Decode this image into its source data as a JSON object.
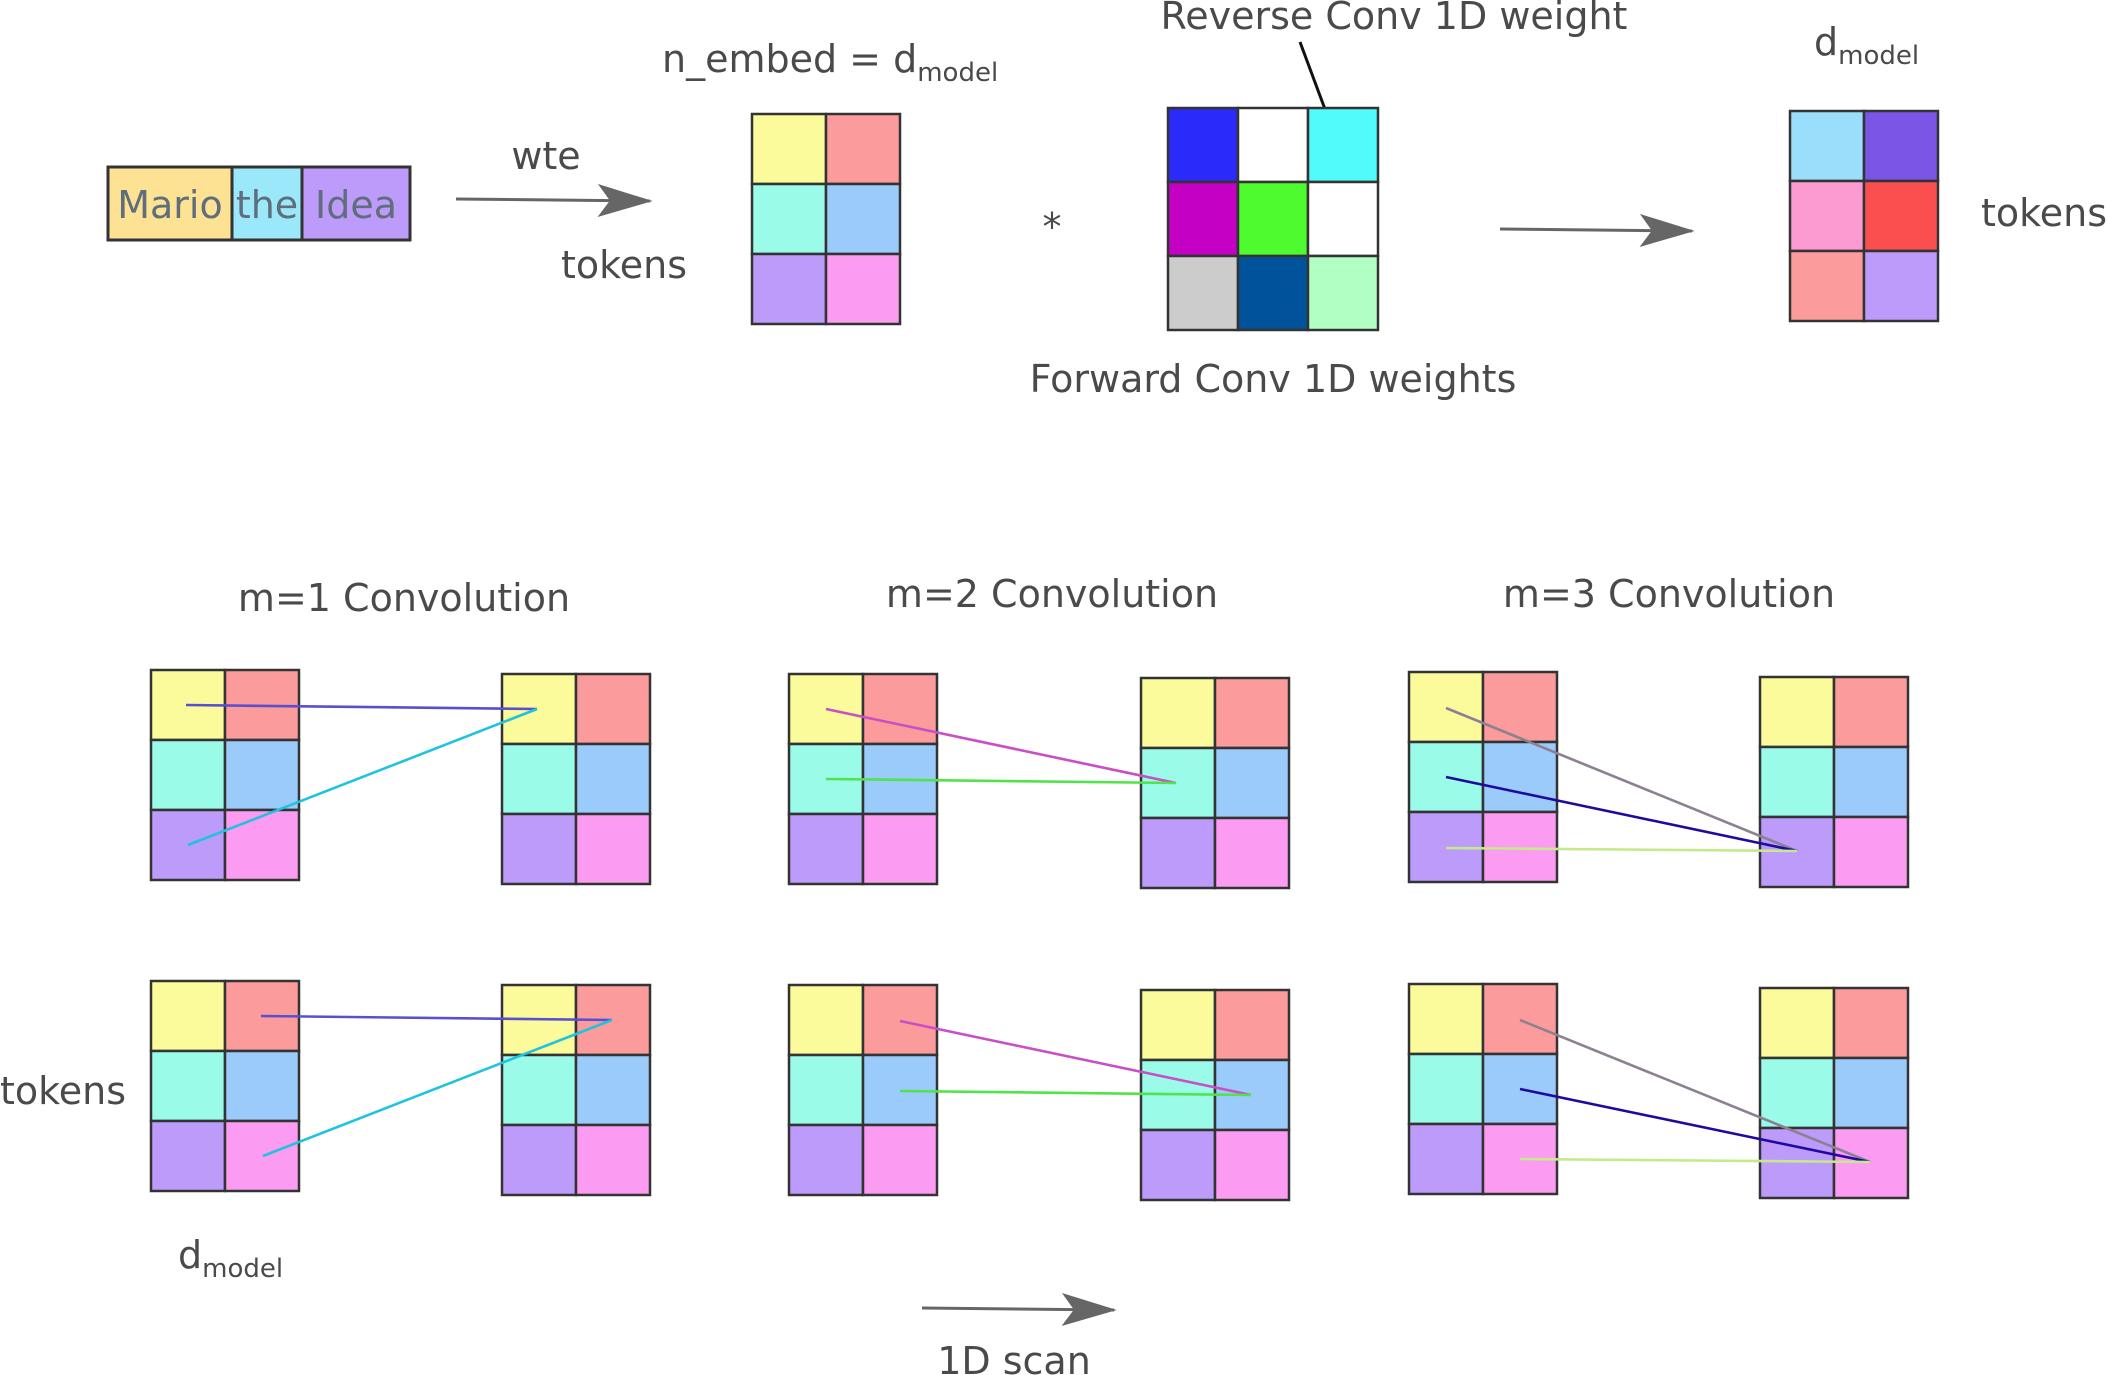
{
  "colors": {
    "yellow": "#fbfb9b",
    "salmon": "#fb9b9b",
    "aqua": "#9bfbe9",
    "skyblue": "#9bcbfb",
    "lavender": "#bd9bfb",
    "pink": "#fb9bf2",
    "arrow": "#666666",
    "line_purple": "#5a4fcf",
    "line_cyan": "#1fc3de",
    "line_magenta": "#c94fc5",
    "line_green": "#52e34a",
    "line_gray": "#8c8092",
    "line_navy": "#1f0aa0",
    "line_lime": "#c4ea8a"
  },
  "top": {
    "token_strip": {
      "tokens": [
        "Mario",
        "the",
        "Idea"
      ],
      "colors": [
        "#fde294",
        "#9be8fb",
        "#bd9bfb"
      ]
    },
    "wte_label": "wte",
    "tokens_label": "tokens",
    "n_embed_label": "n_embed = d",
    "n_embed_sub": "model",
    "embedding_colors": [
      [
        "#fbfb9b",
        "#fb9b9b"
      ],
      [
        "#9bfbe9",
        "#9bcbfb"
      ],
      [
        "#bd9bfb",
        "#fb9bf2"
      ]
    ],
    "convolve_symbol": "*",
    "reverse_label": "Reverse Conv 1D weight",
    "forward_label": "Forward Conv 1D weights",
    "kernel_colors": [
      [
        "#2a2afb",
        "#ffffff",
        "#4ffbfb"
      ],
      [
        "#c400c4",
        "#4efb2f",
        "#ffffff"
      ],
      [
        "#cccccc",
        "#00529b",
        "#b2ffc4"
      ]
    ],
    "output_d_label": "d",
    "output_d_sub": "model",
    "output_tokens_label": "tokens",
    "output_colors": [
      [
        "#9bdefb",
        "#7b55e6"
      ],
      [
        "#fb9bd2",
        "#fb4f4f"
      ],
      [
        "#fb9b9b",
        "#bd9bfb"
      ]
    ]
  },
  "bottom": {
    "titles": [
      "m=1 Convolution",
      "m=2 Convolution",
      "m=3 Convolution"
    ],
    "tokens_label": "tokens",
    "d_label": "d",
    "d_sub": "model",
    "scan_label": "1D scan"
  }
}
